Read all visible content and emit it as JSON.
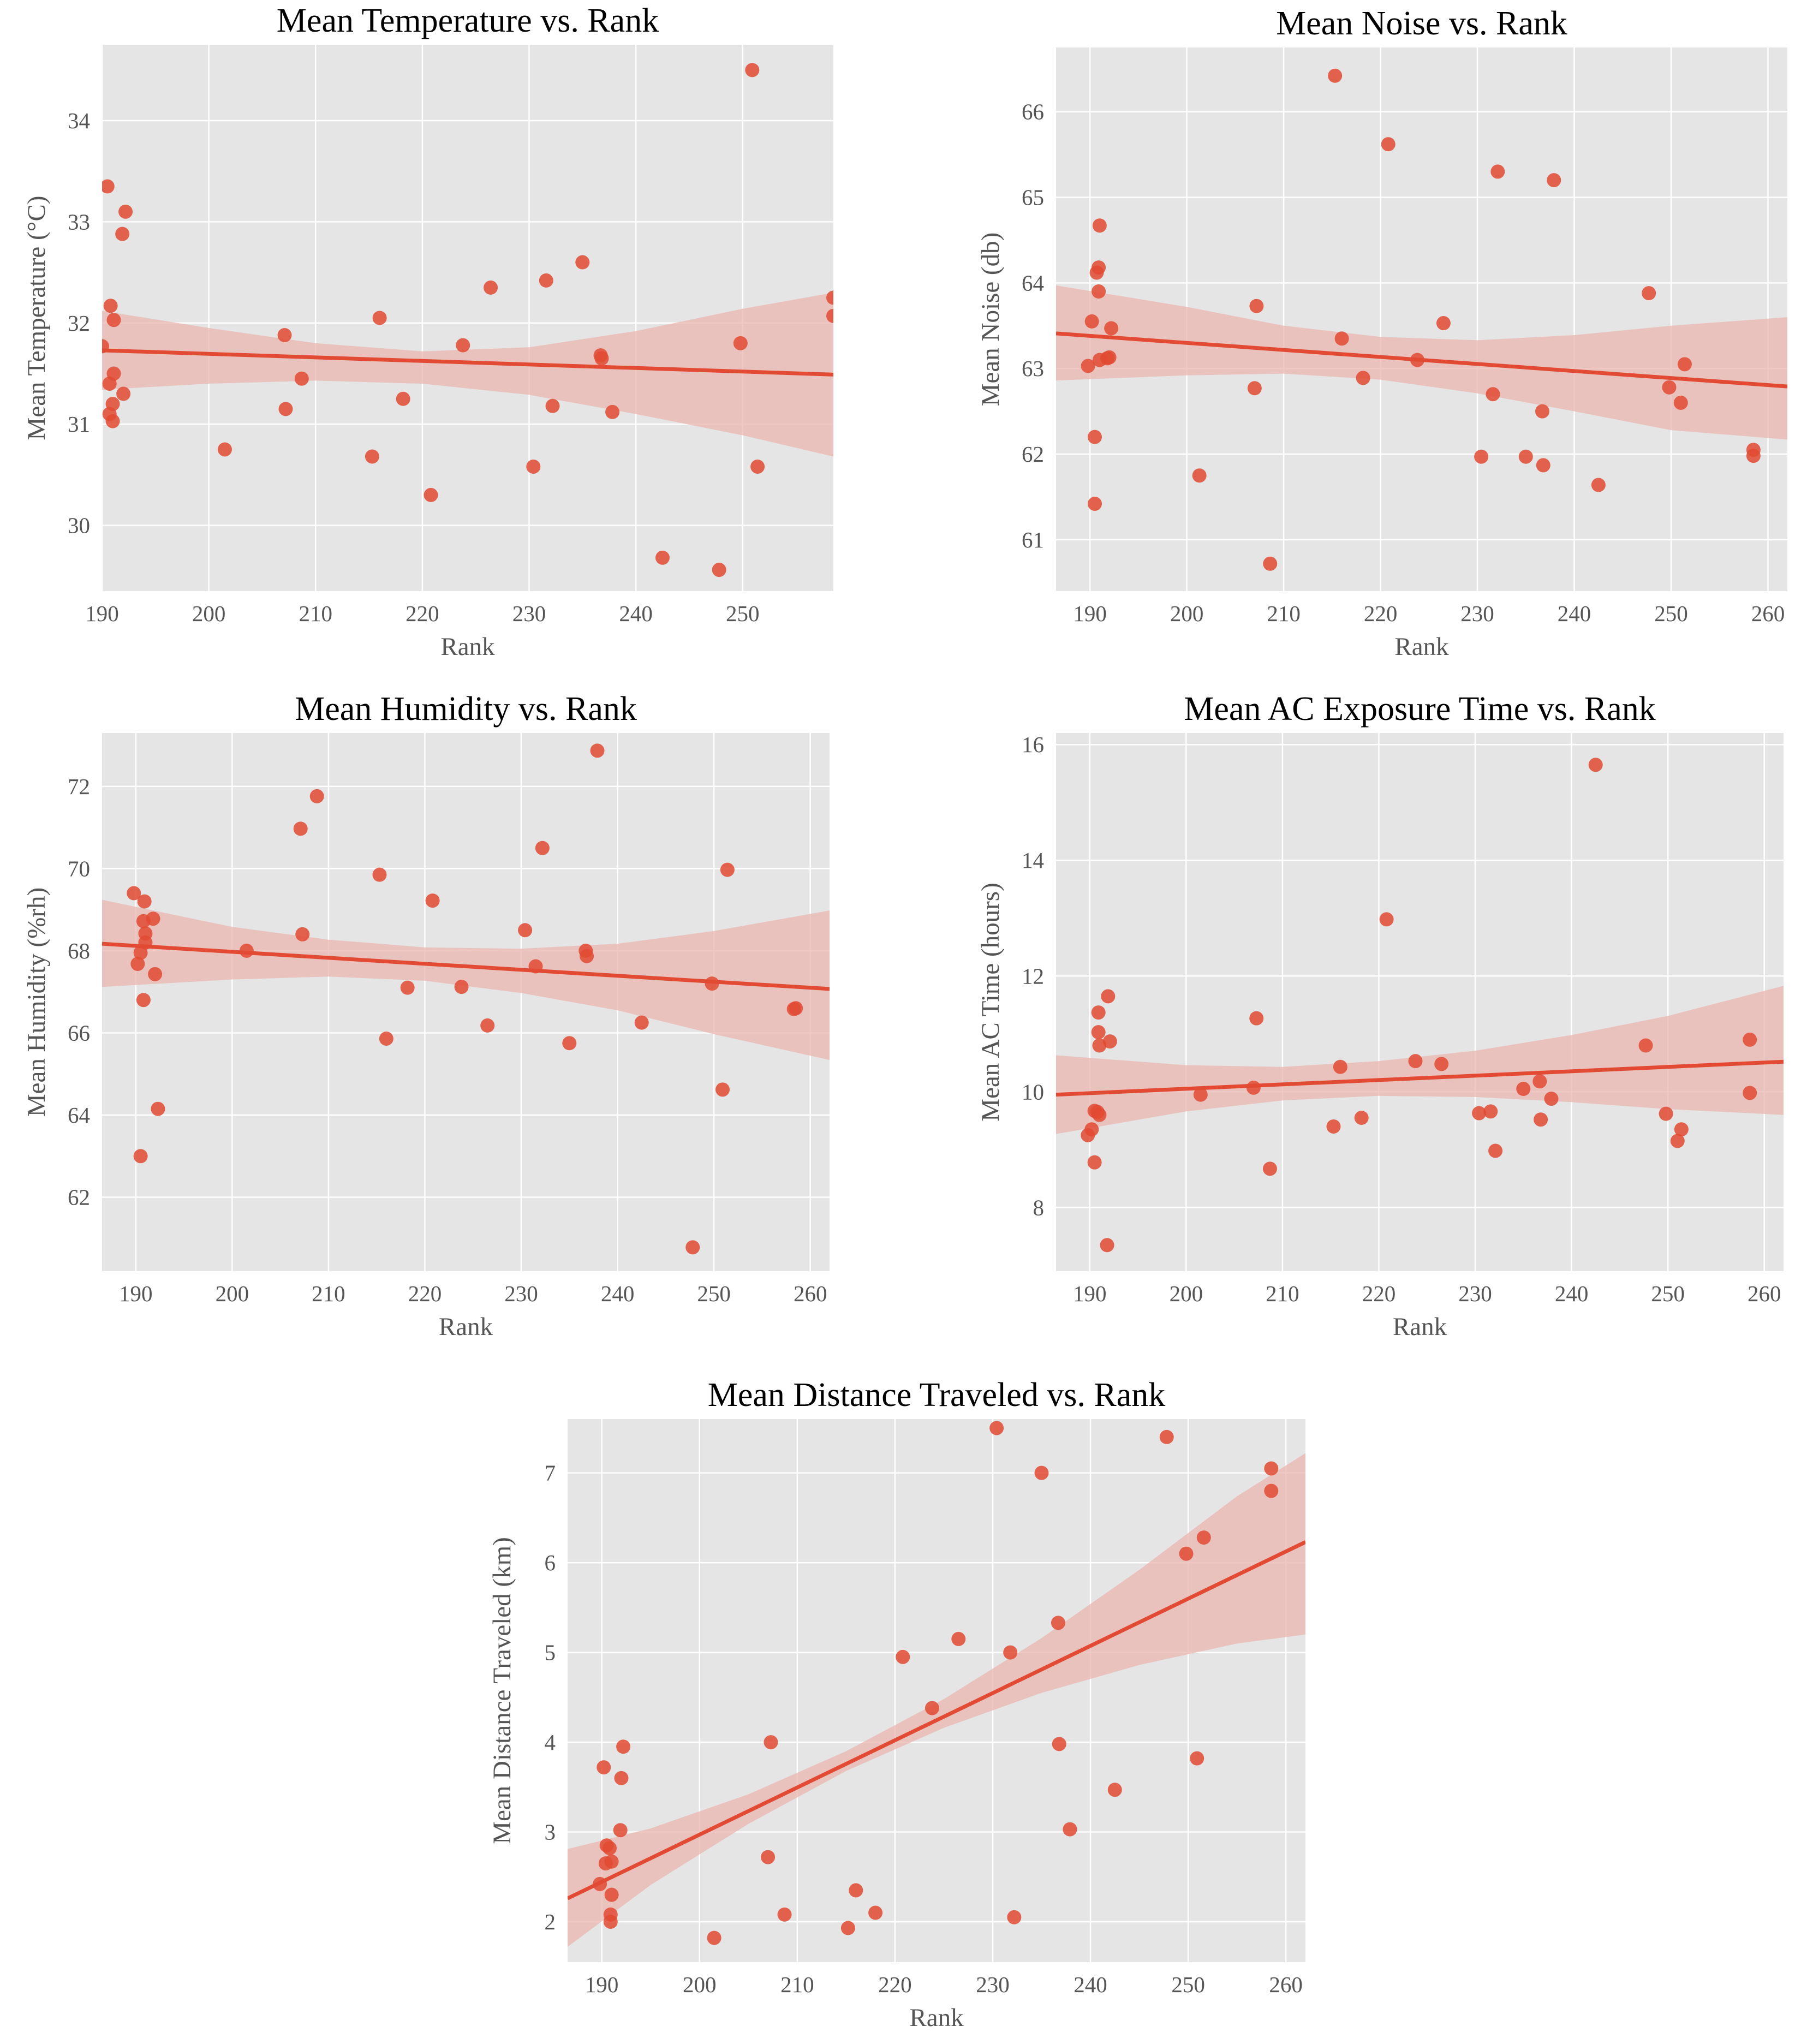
{
  "style": {
    "plot_bg": "#e5e5e5",
    "grid": "#ffffff",
    "point_color": "#e24a33",
    "line_color": "#e24a33",
    "band_color": "#e9b5b0"
  },
  "chart_data": [
    {
      "type": "scatter",
      "title": "Mean Temperature vs. Rank",
      "xlabel": "Rank",
      "ylabel": "Mean Temperature (°C)",
      "xlim": [
        190,
        258.5
      ],
      "ylim": [
        29.35,
        34.75
      ],
      "xticks": [
        190,
        200,
        210,
        220,
        230,
        240,
        250
      ],
      "yticks": [
        30,
        31,
        32,
        33,
        34
      ],
      "grid": true,
      "points": [
        {
          "x": 190,
          "y": 31.77
        },
        {
          "x": 190.5,
          "y": 33.35
        },
        {
          "x": 190.7,
          "y": 31.4
        },
        {
          "x": 190.7,
          "y": 31.1
        },
        {
          "x": 190.8,
          "y": 32.17
        },
        {
          "x": 191.0,
          "y": 31.03
        },
        {
          "x": 191.0,
          "y": 31.2
        },
        {
          "x": 191.1,
          "y": 32.03
        },
        {
          "x": 191.1,
          "y": 31.5
        },
        {
          "x": 191.9,
          "y": 32.88
        },
        {
          "x": 192.0,
          "y": 31.3
        },
        {
          "x": 192.2,
          "y": 33.1
        },
        {
          "x": 201.5,
          "y": 30.75
        },
        {
          "x": 207.1,
          "y": 31.88
        },
        {
          "x": 207.2,
          "y": 31.15
        },
        {
          "x": 208.7,
          "y": 31.45
        },
        {
          "x": 215.3,
          "y": 30.68
        },
        {
          "x": 216.0,
          "y": 32.05
        },
        {
          "x": 218.2,
          "y": 31.25
        },
        {
          "x": 220.8,
          "y": 30.3
        },
        {
          "x": 223.8,
          "y": 31.78
        },
        {
          "x": 226.4,
          "y": 32.35
        },
        {
          "x": 230.4,
          "y": 30.58
        },
        {
          "x": 231.6,
          "y": 32.42
        },
        {
          "x": 232.2,
          "y": 31.18
        },
        {
          "x": 235.0,
          "y": 32.6
        },
        {
          "x": 236.7,
          "y": 31.68
        },
        {
          "x": 236.8,
          "y": 31.65
        },
        {
          "x": 237.8,
          "y": 31.12
        },
        {
          "x": 242.5,
          "y": 29.68
        },
        {
          "x": 247.8,
          "y": 29.56
        },
        {
          "x": 249.8,
          "y": 31.8
        },
        {
          "x": 250.9,
          "y": 34.5
        },
        {
          "x": 251.4,
          "y": 30.58
        },
        {
          "x": 258.5,
          "y": 32.25
        },
        {
          "x": 258.5,
          "y": 32.07
        }
      ],
      "fit": {
        "x": [
          190,
          258.5
        ],
        "y": [
          31.73,
          31.49
        ]
      },
      "ci_band": {
        "x": [
          190,
          200,
          210,
          220,
          230,
          240,
          250,
          258.5
        ],
        "lower": [
          31.34,
          31.4,
          31.43,
          31.4,
          31.29,
          31.1,
          30.89,
          30.68
        ],
        "upper": [
          32.12,
          31.95,
          31.8,
          31.72,
          31.76,
          31.92,
          32.14,
          32.3
        ]
      }
    },
    {
      "type": "scatter",
      "title": "Mean Noise vs. Rank",
      "xlabel": "Rank",
      "ylabel": "Mean Noise (db)",
      "xlim": [
        186.5,
        262
      ],
      "ylim": [
        60.4,
        66.75
      ],
      "xticks": [
        190,
        200,
        210,
        220,
        230,
        240,
        250,
        260
      ],
      "yticks": [
        61,
        62,
        63,
        64,
        65,
        66
      ],
      "grid": true,
      "points": [
        {
          "x": 189.8,
          "y": 63.03
        },
        {
          "x": 190.2,
          "y": 63.55
        },
        {
          "x": 190.5,
          "y": 62.2
        },
        {
          "x": 190.5,
          "y": 61.42
        },
        {
          "x": 190.7,
          "y": 64.12
        },
        {
          "x": 190.9,
          "y": 64.18
        },
        {
          "x": 190.9,
          "y": 63.9
        },
        {
          "x": 191.0,
          "y": 64.67
        },
        {
          "x": 191.0,
          "y": 63.1
        },
        {
          "x": 191.8,
          "y": 63.12
        },
        {
          "x": 192.0,
          "y": 63.13
        },
        {
          "x": 192.2,
          "y": 63.47
        },
        {
          "x": 201.3,
          "y": 61.75
        },
        {
          "x": 207.0,
          "y": 62.77
        },
        {
          "x": 207.2,
          "y": 63.73
        },
        {
          "x": 208.6,
          "y": 60.72
        },
        {
          "x": 215.3,
          "y": 66.42
        },
        {
          "x": 216.0,
          "y": 63.35
        },
        {
          "x": 218.2,
          "y": 62.89
        },
        {
          "x": 220.8,
          "y": 65.62
        },
        {
          "x": 223.8,
          "y": 63.1
        },
        {
          "x": 226.5,
          "y": 63.53
        },
        {
          "x": 230.4,
          "y": 61.97
        },
        {
          "x": 231.6,
          "y": 62.7
        },
        {
          "x": 232.1,
          "y": 65.3
        },
        {
          "x": 235.0,
          "y": 61.97
        },
        {
          "x": 236.7,
          "y": 62.5
        },
        {
          "x": 236.8,
          "y": 61.87
        },
        {
          "x": 237.9,
          "y": 65.2
        },
        {
          "x": 242.5,
          "y": 61.64
        },
        {
          "x": 247.7,
          "y": 63.88
        },
        {
          "x": 249.8,
          "y": 62.78
        },
        {
          "x": 251.0,
          "y": 62.6
        },
        {
          "x": 251.4,
          "y": 63.05
        },
        {
          "x": 258.5,
          "y": 62.05
        },
        {
          "x": 258.5,
          "y": 61.98
        }
      ],
      "fit": {
        "x": [
          186.5,
          262
        ],
        "y": [
          63.41,
          62.79
        ]
      },
      "ci_band": {
        "x": [
          186.5,
          200,
          210,
          220,
          230,
          240,
          250,
          262
        ],
        "lower": [
          62.86,
          62.92,
          62.94,
          62.87,
          62.71,
          62.5,
          62.28,
          62.17
        ],
        "upper": [
          63.97,
          63.72,
          63.5,
          63.37,
          63.33,
          63.39,
          63.5,
          63.6
        ]
      }
    },
    {
      "type": "scatter",
      "title": "Mean Humidity vs. Rank",
      "xlabel": "Rank",
      "ylabel": "Mean Humidity (%rh)",
      "xlim": [
        186.5,
        262
      ],
      "ylim": [
        60.2,
        73.3
      ],
      "xticks": [
        190,
        200,
        210,
        220,
        230,
        240,
        250,
        260
      ],
      "yticks": [
        62,
        64,
        66,
        68,
        70,
        72
      ],
      "grid": true,
      "points": [
        {
          "x": 189.8,
          "y": 69.4
        },
        {
          "x": 190.2,
          "y": 67.68
        },
        {
          "x": 190.5,
          "y": 67.95
        },
        {
          "x": 190.5,
          "y": 63.0
        },
        {
          "x": 190.8,
          "y": 66.8
        },
        {
          "x": 190.8,
          "y": 68.72
        },
        {
          "x": 190.9,
          "y": 69.2
        },
        {
          "x": 191.0,
          "y": 68.42
        },
        {
          "x": 191.0,
          "y": 68.2
        },
        {
          "x": 191.8,
          "y": 68.78
        },
        {
          "x": 192.0,
          "y": 67.43
        },
        {
          "x": 192.3,
          "y": 64.15
        },
        {
          "x": 201.5,
          "y": 68.0
        },
        {
          "x": 207.1,
          "y": 70.97
        },
        {
          "x": 207.3,
          "y": 68.4
        },
        {
          "x": 208.8,
          "y": 71.76
        },
        {
          "x": 215.3,
          "y": 69.85
        },
        {
          "x": 216.0,
          "y": 65.86
        },
        {
          "x": 218.2,
          "y": 67.1
        },
        {
          "x": 220.8,
          "y": 69.22
        },
        {
          "x": 223.8,
          "y": 67.12
        },
        {
          "x": 226.5,
          "y": 66.18
        },
        {
          "x": 230.4,
          "y": 68.5
        },
        {
          "x": 231.5,
          "y": 67.62
        },
        {
          "x": 232.2,
          "y": 70.5
        },
        {
          "x": 235.0,
          "y": 65.75
        },
        {
          "x": 236.7,
          "y": 68.0
        },
        {
          "x": 236.8,
          "y": 67.87
        },
        {
          "x": 237.9,
          "y": 72.87
        },
        {
          "x": 242.5,
          "y": 66.25
        },
        {
          "x": 247.8,
          "y": 60.78
        },
        {
          "x": 249.8,
          "y": 67.2
        },
        {
          "x": 250.9,
          "y": 64.62
        },
        {
          "x": 251.4,
          "y": 69.97
        },
        {
          "x": 258.3,
          "y": 66.58
        },
        {
          "x": 258.5,
          "y": 66.6
        }
      ],
      "fit": {
        "x": [
          186.5,
          262
        ],
        "y": [
          68.17,
          67.07
        ]
      },
      "ci_band": {
        "x": [
          186.5,
          200,
          210,
          220,
          230,
          240,
          250,
          262
        ],
        "lower": [
          67.12,
          67.3,
          67.37,
          67.27,
          66.97,
          66.55,
          65.97,
          65.34
        ],
        "upper": [
          69.24,
          68.58,
          68.27,
          68.08,
          68.05,
          68.17,
          68.48,
          68.98
        ]
      }
    },
    {
      "type": "scatter",
      "title": "Mean AC Exposure Time vs. Rank",
      "xlabel": "Rank",
      "ylabel": "Mean AC Time (hours)",
      "xlim": [
        186.5,
        262
      ],
      "ylim": [
        6.9,
        16.2
      ],
      "xticks": [
        190,
        200,
        210,
        220,
        230,
        240,
        250,
        260
      ],
      "yticks": [
        8,
        10,
        12,
        14,
        16
      ],
      "grid": true,
      "points": [
        {
          "x": 189.8,
          "y": 9.25
        },
        {
          "x": 190.2,
          "y": 9.35
        },
        {
          "x": 190.5,
          "y": 9.67
        },
        {
          "x": 190.5,
          "y": 8.78
        },
        {
          "x": 190.8,
          "y": 9.65
        },
        {
          "x": 190.9,
          "y": 11.03
        },
        {
          "x": 190.9,
          "y": 11.37
        },
        {
          "x": 191.0,
          "y": 10.8
        },
        {
          "x": 191.0,
          "y": 9.6
        },
        {
          "x": 191.8,
          "y": 7.35
        },
        {
          "x": 191.9,
          "y": 11.65
        },
        {
          "x": 192.1,
          "y": 10.87
        },
        {
          "x": 201.5,
          "y": 9.95
        },
        {
          "x": 207.0,
          "y": 10.07
        },
        {
          "x": 207.3,
          "y": 11.27
        },
        {
          "x": 208.7,
          "y": 8.67
        },
        {
          "x": 215.3,
          "y": 9.4
        },
        {
          "x": 216.0,
          "y": 10.43
        },
        {
          "x": 218.2,
          "y": 9.55
        },
        {
          "x": 220.8,
          "y": 12.98
        },
        {
          "x": 223.8,
          "y": 10.53
        },
        {
          "x": 226.5,
          "y": 10.48
        },
        {
          "x": 230.4,
          "y": 9.63
        },
        {
          "x": 231.6,
          "y": 9.66
        },
        {
          "x": 232.1,
          "y": 8.98
        },
        {
          "x": 235.0,
          "y": 10.05
        },
        {
          "x": 236.7,
          "y": 10.18
        },
        {
          "x": 236.8,
          "y": 9.52
        },
        {
          "x": 237.9,
          "y": 9.88
        },
        {
          "x": 242.5,
          "y": 15.65
        },
        {
          "x": 247.7,
          "y": 10.8
        },
        {
          "x": 249.8,
          "y": 9.62
        },
        {
          "x": 251.0,
          "y": 9.15
        },
        {
          "x": 251.4,
          "y": 9.35
        },
        {
          "x": 258.5,
          "y": 10.9
        },
        {
          "x": 258.5,
          "y": 9.98
        }
      ],
      "fit": {
        "x": [
          186.5,
          262
        ],
        "y": [
          9.95,
          10.52
        ]
      },
      "ci_band": {
        "x": [
          186.5,
          200,
          210,
          220,
          230,
          240,
          250,
          262
        ],
        "lower": [
          9.27,
          9.66,
          9.85,
          9.93,
          9.91,
          9.82,
          9.7,
          9.6
        ],
        "upper": [
          10.63,
          10.46,
          10.43,
          10.53,
          10.71,
          10.98,
          11.31,
          11.83
        ]
      }
    },
    {
      "type": "scatter",
      "title": "Mean Distance Traveled vs. Rank",
      "xlabel": "Rank",
      "ylabel": "Mean Distance Traveled (km)",
      "xlim": [
        186.5,
        262
      ],
      "ylim": [
        1.55,
        7.6
      ],
      "xticks": [
        190,
        200,
        210,
        220,
        230,
        240,
        250,
        260
      ],
      "yticks": [
        2,
        3,
        4,
        5,
        6,
        7
      ],
      "grid": true,
      "points": [
        {
          "x": 189.8,
          "y": 2.42
        },
        {
          "x": 190.2,
          "y": 3.72
        },
        {
          "x": 190.4,
          "y": 2.65
        },
        {
          "x": 190.5,
          "y": 2.85
        },
        {
          "x": 190.8,
          "y": 2.82
        },
        {
          "x": 190.9,
          "y": 2.08
        },
        {
          "x": 190.9,
          "y": 2.0
        },
        {
          "x": 191.0,
          "y": 2.67
        },
        {
          "x": 191.0,
          "y": 2.3
        },
        {
          "x": 191.9,
          "y": 3.02
        },
        {
          "x": 192.0,
          "y": 3.6
        },
        {
          "x": 192.2,
          "y": 3.95
        },
        {
          "x": 201.5,
          "y": 1.82
        },
        {
          "x": 207.0,
          "y": 2.72
        },
        {
          "x": 207.3,
          "y": 4.0
        },
        {
          "x": 208.7,
          "y": 2.08
        },
        {
          "x": 215.2,
          "y": 1.93
        },
        {
          "x": 216.0,
          "y": 2.35
        },
        {
          "x": 218.0,
          "y": 2.1
        },
        {
          "x": 220.8,
          "y": 4.95
        },
        {
          "x": 223.8,
          "y": 4.38
        },
        {
          "x": 226.5,
          "y": 5.15
        },
        {
          "x": 230.4,
          "y": 7.5
        },
        {
          "x": 231.8,
          "y": 5.0
        },
        {
          "x": 232.2,
          "y": 2.05
        },
        {
          "x": 235.0,
          "y": 7.0
        },
        {
          "x": 236.7,
          "y": 5.33
        },
        {
          "x": 236.8,
          "y": 3.98
        },
        {
          "x": 237.9,
          "y": 3.03
        },
        {
          "x": 242.5,
          "y": 3.47
        },
        {
          "x": 247.8,
          "y": 7.4
        },
        {
          "x": 249.8,
          "y": 6.1
        },
        {
          "x": 250.9,
          "y": 3.82
        },
        {
          "x": 251.6,
          "y": 6.28
        },
        {
          "x": 258.5,
          "y": 7.05
        },
        {
          "x": 258.5,
          "y": 6.8
        }
      ],
      "fit": {
        "x": [
          186.5,
          262
        ],
        "y": [
          2.26,
          6.23
        ]
      },
      "ci_band": {
        "x": [
          186.5,
          195,
          205,
          215,
          225,
          235,
          245,
          255,
          262
        ],
        "lower": [
          1.72,
          2.41,
          3.09,
          3.68,
          4.16,
          4.55,
          4.86,
          5.1,
          5.2
        ],
        "upper": [
          2.81,
          3.04,
          3.42,
          3.9,
          4.48,
          5.16,
          5.92,
          6.74,
          7.22
        ]
      }
    }
  ]
}
